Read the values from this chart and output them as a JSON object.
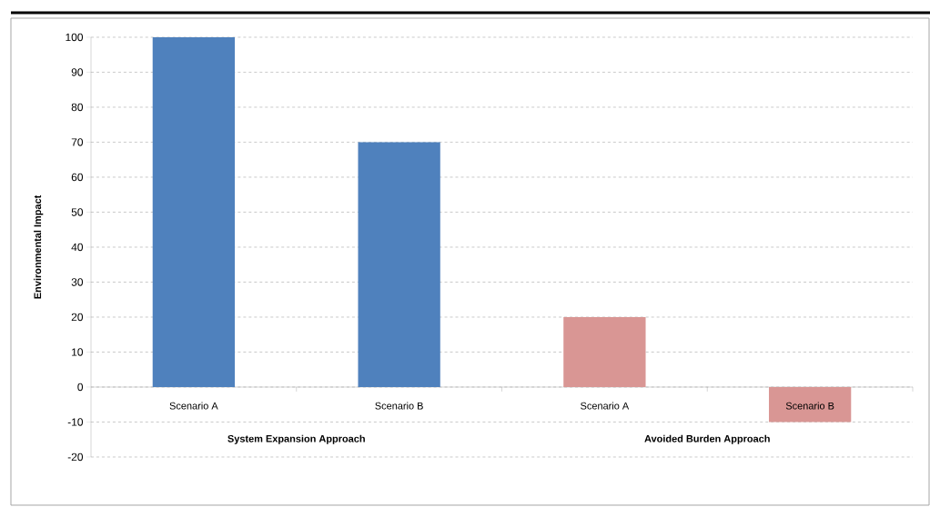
{
  "chart_data": {
    "type": "bar",
    "ylabel": "Environmental Impact",
    "categories": [
      "Scenario A",
      "Scenario B",
      "Scenario A",
      "Scenario B"
    ],
    "values": [
      100,
      70,
      20,
      -10
    ],
    "colors": [
      "#4f81bd",
      "#4f81bd",
      "#d99694",
      "#d99694"
    ],
    "ylim": [
      -20,
      100
    ],
    "yticks": [
      -20,
      -10,
      0,
      10,
      20,
      30,
      40,
      50,
      60,
      70,
      80,
      90,
      100
    ],
    "grid": "y",
    "annotations": [
      "System Expansion  Approach",
      "Avoided Burden Approach"
    ]
  }
}
